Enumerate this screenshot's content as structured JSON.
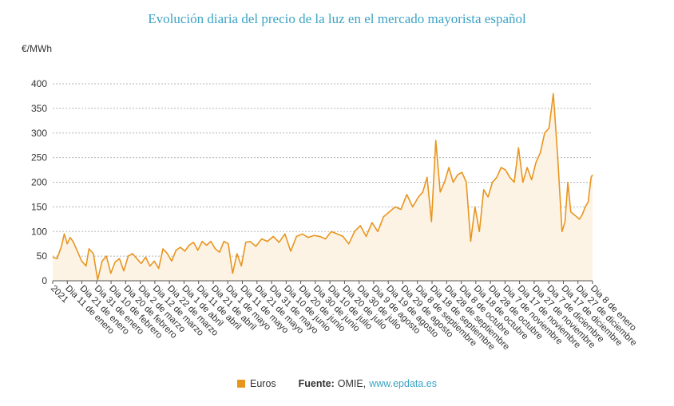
{
  "header": {
    "title": "Evolución diaria del precio de la luz en el mercado mayorista español"
  },
  "chart_data": {
    "type": "area",
    "title": "Evolución diaria del precio de la luz en el mercado mayorista español",
    "ylabel": "€/MWh",
    "xlabel": "",
    "ylim": [
      0,
      400
    ],
    "yticks": [
      0,
      50,
      100,
      150,
      200,
      250,
      300,
      350,
      400
    ],
    "grid": true,
    "legend_position": "bottom",
    "color": "#e8951f",
    "fill_color": "#fdf3e4",
    "x_tick_labels": [
      "2021",
      "Dia 11 de enero",
      "Dia 21 de enero",
      "Dia 31 de enero",
      "Dia 10 de febrero",
      "Dia 20 de febrero",
      "Dia 2 de marzo",
      "Dia 12 de marzo",
      "Dia 22 de marzo",
      "Dia 1 de abril",
      "Dia 11 de abril",
      "Dia 21 de abril",
      "Dia 1 de mayo",
      "Dia 11 de mayo",
      "Dia 21 de mayo",
      "Dia 31 de mayo",
      "Dia 10 de junio",
      "Dia 20 de junio",
      "Dia 30 de junio",
      "Dia 10 de julio",
      "Dia 20 de julio",
      "Dia 30 de julio",
      "Dia 9 de agosto",
      "Dia 19 de agosto",
      "Dia 29 de agosto",
      "Dia 8 de septiembre",
      "Dia 18 de septiembre",
      "Dia 28 de septiembre",
      "Dia 8 de octubre",
      "Dia 18 de octubre",
      "Dia 28 de octubre",
      "Dia 7 de noviembre",
      "Dia 17 de noviembre",
      "Dia 27 de noviembre",
      "Dia 7 de diciembre",
      "Dia 17 de diciembre",
      "Dia 27 de diciembre",
      "Dia 8 de enero"
    ],
    "series": [
      {
        "name": "Euros",
        "x": [
          "2021-01-01",
          "2021-01-04",
          "2021-01-07",
          "2021-01-09",
          "2021-01-11",
          "2021-01-13",
          "2021-01-15",
          "2021-01-18",
          "2021-01-21",
          "2021-01-24",
          "2021-01-26",
          "2021-01-29",
          "2021-02-01",
          "2021-02-04",
          "2021-02-07",
          "2021-02-10",
          "2021-02-13",
          "2021-02-16",
          "2021-02-19",
          "2021-02-22",
          "2021-02-25",
          "2021-02-28",
          "2021-03-03",
          "2021-03-06",
          "2021-03-09",
          "2021-03-12",
          "2021-03-15",
          "2021-03-18",
          "2021-03-21",
          "2021-03-24",
          "2021-03-27",
          "2021-03-30",
          "2021-04-02",
          "2021-04-05",
          "2021-04-08",
          "2021-04-11",
          "2021-04-14",
          "2021-04-17",
          "2021-04-20",
          "2021-04-23",
          "2021-04-26",
          "2021-04-29",
          "2021-05-02",
          "2021-05-05",
          "2021-05-08",
          "2021-05-11",
          "2021-05-14",
          "2021-05-17",
          "2021-05-21",
          "2021-05-25",
          "2021-05-29",
          "2021-06-02",
          "2021-06-06",
          "2021-06-10",
          "2021-06-14",
          "2021-06-18",
          "2021-06-22",
          "2021-06-26",
          "2021-06-30",
          "2021-07-04",
          "2021-07-08",
          "2021-07-12",
          "2021-07-16",
          "2021-07-20",
          "2021-07-24",
          "2021-07-28",
          "2021-08-01",
          "2021-08-05",
          "2021-08-09",
          "2021-08-13",
          "2021-08-17",
          "2021-08-21",
          "2021-08-25",
          "2021-08-29",
          "2021-09-02",
          "2021-09-06",
          "2021-09-10",
          "2021-09-13",
          "2021-09-16",
          "2021-09-19",
          "2021-09-22",
          "2021-09-25",
          "2021-09-28",
          "2021-10-01",
          "2021-10-04",
          "2021-10-07",
          "2021-10-10",
          "2021-10-13",
          "2021-10-16",
          "2021-10-19",
          "2021-10-22",
          "2021-10-25",
          "2021-10-28",
          "2021-10-31",
          "2021-11-03",
          "2021-11-06",
          "2021-11-09",
          "2021-11-12",
          "2021-11-15",
          "2021-11-18",
          "2021-11-21",
          "2021-11-24",
          "2021-11-27",
          "2021-11-30",
          "2021-12-03",
          "2021-12-06",
          "2021-12-09",
          "2021-12-12",
          "2021-12-15",
          "2021-12-18",
          "2021-12-20",
          "2021-12-22",
          "2021-12-24",
          "2021-12-26",
          "2021-12-28",
          "2021-12-30",
          "2022-01-01",
          "2022-01-03",
          "2022-01-05",
          "2022-01-07",
          "2022-01-08"
        ],
        "values": [
          48,
          45,
          70,
          95,
          75,
          88,
          80,
          60,
          40,
          30,
          65,
          55,
          2,
          40,
          50,
          15,
          38,
          45,
          20,
          50,
          55,
          45,
          35,
          48,
          30,
          40,
          25,
          65,
          55,
          40,
          62,
          68,
          60,
          72,
          78,
          62,
          80,
          72,
          80,
          65,
          58,
          80,
          75,
          15,
          55,
          30,
          78,
          80,
          70,
          85,
          80,
          90,
          78,
          95,
          60,
          90,
          95,
          88,
          92,
          90,
          85,
          100,
          95,
          90,
          75,
          100,
          112,
          90,
          118,
          100,
          130,
          140,
          150,
          145,
          175,
          150,
          170,
          180,
          210,
          120,
          285,
          180,
          200,
          230,
          200,
          215,
          220,
          200,
          80,
          150,
          100,
          185,
          170,
          200,
          210,
          230,
          225,
          210,
          200,
          270,
          200,
          230,
          205,
          240,
          260,
          300,
          310,
          380,
          250,
          100,
          120,
          200,
          140,
          135,
          130,
          125,
          135,
          150,
          160,
          210,
          215
        ]
      }
    ]
  },
  "legend": {
    "series_label": "Euros",
    "source_label": "Fuente:",
    "source_name": "OMIE,",
    "source_link": "www.epdata.es"
  }
}
